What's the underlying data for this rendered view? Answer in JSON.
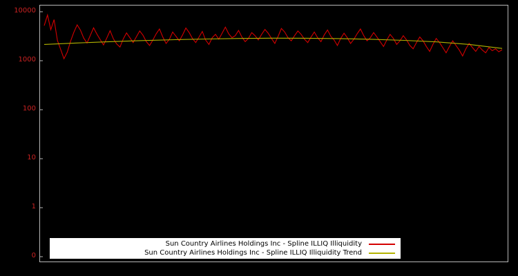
{
  "chart_data": {
    "type": "line",
    "title": "",
    "background": "#000000",
    "frame_color": "#b8b8b8",
    "y_scale": "log",
    "x_axis": {
      "labels_visible": false
    },
    "ytick_labels": [
      "10000",
      "1000",
      "100",
      "10",
      "1",
      "0"
    ],
    "ytick_values": [
      10000,
      1000,
      100,
      10,
      1,
      0.1
    ],
    "tick_color": "#cc2222",
    "grid": false,
    "series": [
      {
        "name": "Sun Country Airlines Holdings Inc - Spline ILLIQ Illiquidity",
        "color": "#d40000",
        "values": [
          5200,
          8600,
          4300,
          6900,
          2600,
          1700,
          1100,
          1500,
          2500,
          3800,
          5400,
          4200,
          2900,
          2300,
          3300,
          4700,
          3500,
          2700,
          2100,
          2900,
          4100,
          2800,
          2200,
          1900,
          2800,
          3700,
          2950,
          2350,
          3100,
          4050,
          3300,
          2450,
          2050,
          2650,
          3550,
          4450,
          3050,
          2250,
          2750,
          3850,
          3150,
          2550,
          3350,
          4650,
          3750,
          2850,
          2350,
          3050,
          3950,
          2650,
          2150,
          2950,
          3450,
          2750,
          3650,
          4850,
          3550,
          2950,
          3250,
          4150,
          3050,
          2450,
          2850,
          3750,
          3250,
          2650,
          3450,
          4350,
          3650,
          2850,
          2250,
          3150,
          4550,
          3850,
          2950,
          2550,
          3250,
          4050,
          3450,
          2750,
          2350,
          3050,
          3850,
          2950,
          2450,
          3350,
          4250,
          3150,
          2650,
          2050,
          2850,
          3650,
          2950,
          2250,
          2750,
          3550,
          4450,
          3250,
          2550,
          2950,
          3750,
          3050,
          2450,
          1950,
          2650,
          3450,
          2850,
          2150,
          2550,
          3250,
          2650,
          2050,
          1750,
          2350,
          3050,
          2550,
          1950,
          1550,
          2150,
          2850,
          2350,
          1850,
          1450,
          1950,
          2550,
          2050,
          1650,
          1250,
          1750,
          2250,
          1850,
          1550,
          1950,
          1650,
          1450,
          1850,
          1600,
          1750,
          1520,
          1680
        ]
      },
      {
        "name": "Sun Country Airlines Holdings Inc - Spline ILLIQ Illiquidity Trend",
        "color": "#b3b300",
        "values": [
          2150,
          2300,
          2450,
          2580,
          2690,
          2780,
          2850,
          2890,
          2880,
          2830,
          2740,
          2600,
          2420,
          2150,
          1780
        ]
      }
    ],
    "legend": {
      "position": "bottom-center",
      "background": "#ffffff",
      "text_color": "#000000",
      "entries": [
        {
          "label": "Sun Country Airlines Holdings Inc - Spline ILLIQ Illiquidity",
          "color": "#d40000"
        },
        {
          "label": "Sun Country Airlines Holdings Inc - Spline ILLIQ Illiquidity Trend",
          "color": "#b3b300"
        }
      ]
    }
  }
}
